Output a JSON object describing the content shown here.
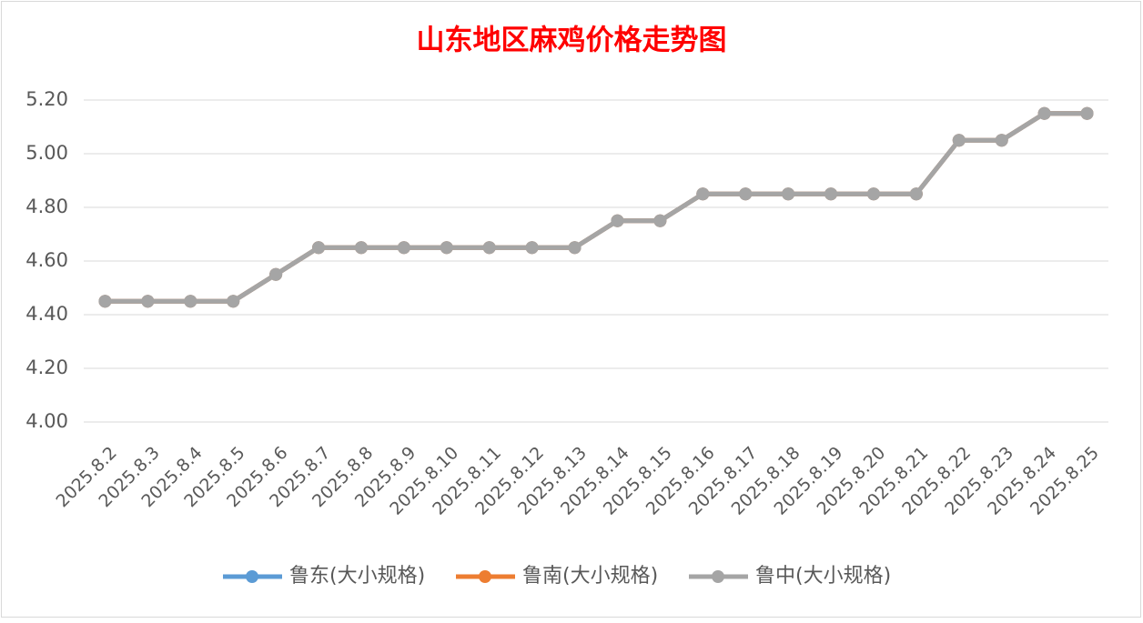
{
  "chart_data": {
    "type": "line",
    "title": "山东地区麻鸡价格走势图",
    "categories": [
      "2025.8.2",
      "2025.8.3",
      "2025.8.4",
      "2025.8.5",
      "2025.8.6",
      "2025.8.7",
      "2025.8.8",
      "2025.8.9",
      "2025.8.10",
      "2025.8.11",
      "2025.8.12",
      "2025.8.13",
      "2025.8.14",
      "2025.8.15",
      "2025.8.16",
      "2025.8.17",
      "2025.8.18",
      "2025.8.19",
      "2025.8.20",
      "2025.8.21",
      "2025.8.22",
      "2025.8.23",
      "2025.8.24",
      "2025.8.25"
    ],
    "series": [
      {
        "name": "鲁东(大小规格)",
        "color": "#5b9bd5",
        "values": [
          4.45,
          4.45,
          4.45,
          4.45,
          4.55,
          4.65,
          4.65,
          4.65,
          4.65,
          4.65,
          4.65,
          4.65,
          4.75,
          4.75,
          4.85,
          4.85,
          4.85,
          4.85,
          4.85,
          4.85,
          5.05,
          5.05,
          5.15,
          5.15
        ]
      },
      {
        "name": "鲁南(大小规格)",
        "color": "#ed7d31",
        "values": [
          4.45,
          4.45,
          4.45,
          4.45,
          4.55,
          4.65,
          4.65,
          4.65,
          4.65,
          4.65,
          4.65,
          4.65,
          4.75,
          4.75,
          4.85,
          4.85,
          4.85,
          4.85,
          4.85,
          4.85,
          5.05,
          5.05,
          5.15,
          5.15
        ]
      },
      {
        "name": "鲁中(大小规格)",
        "color": "#a5a5a5",
        "values": [
          4.45,
          4.45,
          4.45,
          4.45,
          4.55,
          4.65,
          4.65,
          4.65,
          4.65,
          4.65,
          4.65,
          4.65,
          4.75,
          4.75,
          4.85,
          4.85,
          4.85,
          4.85,
          4.85,
          4.85,
          5.05,
          5.05,
          5.15,
          5.15
        ]
      }
    ],
    "ylim": [
      4.0,
      5.2
    ],
    "yticks": [
      {
        "value": 4.0,
        "label": "4.00"
      },
      {
        "value": 4.2,
        "label": "4.20"
      },
      {
        "value": 4.4,
        "label": "4.40"
      },
      {
        "value": 4.6,
        "label": "4.60"
      },
      {
        "value": 4.8,
        "label": "4.80"
      },
      {
        "value": 5.0,
        "label": "5.00"
      },
      {
        "value": 5.2,
        "label": "5.20"
      }
    ],
    "grid": true,
    "legend": "bottom"
  }
}
